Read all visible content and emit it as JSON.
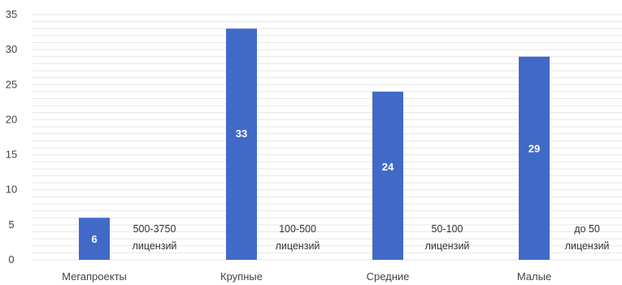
{
  "chart_data": {
    "type": "bar",
    "categories": [
      "Мегапроекты",
      "Крупные",
      "Средние",
      "Малые"
    ],
    "values": [
      6,
      33,
      24,
      29
    ],
    "data_labels": [
      "6",
      "33",
      "24",
      "29"
    ],
    "annotations": [
      [
        "500-3750",
        "лицензий"
      ],
      [
        "100-500",
        "лицензий"
      ],
      [
        "50-100",
        "лицензий"
      ],
      [
        "до 50",
        "лицензий"
      ]
    ],
    "yticks": [
      "0",
      "5",
      "10",
      "15",
      "20",
      "25",
      "30",
      "35"
    ],
    "ylim": [
      0,
      35
    ],
    "major_step": 5,
    "minor_step": 1,
    "grid": true,
    "title": "",
    "xlabel": "",
    "ylabel": "",
    "colors": {
      "bar": "#4169c8",
      "grid": "#e6e6e6"
    }
  }
}
